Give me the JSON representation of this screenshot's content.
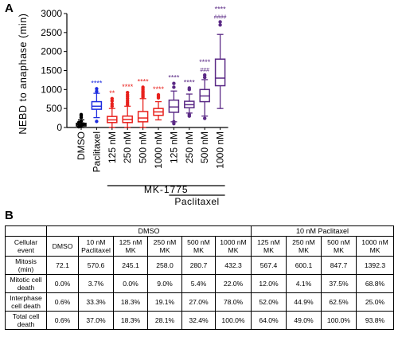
{
  "panels": {
    "a": "A",
    "b": "B"
  },
  "chart_data": {
    "type": "boxplot",
    "ylabel": "NEBD to anaphase (min)",
    "ylim": [
      0,
      3000
    ],
    "yticks": [
      "0",
      "500",
      "1000",
      "1500",
      "2000",
      "2500",
      "3000"
    ],
    "categories": [
      "DMSO",
      "Paclitaxel",
      "125 nM",
      "250 nM",
      "500 nM",
      "1000 nM",
      "125 nM",
      "250 nM",
      "500 nM",
      "1000 nM"
    ],
    "colors": [
      "#000000",
      "#1f2ee0",
      "#e8211d",
      "#e8211d",
      "#e8211d",
      "#e8211d",
      "#5b2a86",
      "#5b2a86",
      "#5b2a86",
      "#5b2a86"
    ],
    "series": [
      {
        "min": 0,
        "q1": 40,
        "median": 75,
        "q3": 110,
        "max": 200,
        "outliers": [
          260,
          310,
          340
        ]
      },
      {
        "min": 260,
        "q1": 480,
        "median": 560,
        "q3": 680,
        "max": 900,
        "outliers": [
          160,
          950,
          1020
        ]
      },
      {
        "min": 0,
        "q1": 130,
        "median": 200,
        "q3": 290,
        "max": 500,
        "outliers": [
          560,
          620,
          700,
          760
        ]
      },
      {
        "min": 0,
        "q1": 130,
        "median": 210,
        "q3": 300,
        "max": 560,
        "outliers": [
          600,
          650,
          700,
          760,
          810,
          860,
          920
        ]
      },
      {
        "min": 0,
        "q1": 150,
        "median": 250,
        "q3": 420,
        "max": 760,
        "outliers": [
          800,
          840,
          880,
          920,
          960,
          1010,
          1060
        ]
      },
      {
        "min": 200,
        "q1": 320,
        "median": 410,
        "q3": 500,
        "max": 680,
        "outliers": [
          780,
          820,
          860
        ]
      },
      {
        "min": 150,
        "q1": 400,
        "median": 540,
        "q3": 720,
        "max": 960,
        "outliers": [
          100,
          150,
          1060,
          1160
        ]
      },
      {
        "min": 380,
        "q1": 520,
        "median": 600,
        "q3": 690,
        "max": 880,
        "outliers": [
          300,
          340,
          1000,
          1040
        ]
      },
      {
        "min": 300,
        "q1": 680,
        "median": 830,
        "q3": 1000,
        "max": 1260,
        "outliers": [
          240,
          1320,
          1380
        ]
      },
      {
        "min": 500,
        "q1": 1100,
        "median": 1300,
        "q3": 1800,
        "max": 2450,
        "outliers": [
          2700,
          2780
        ]
      }
    ],
    "annotations": [
      "",
      "****",
      "**",
      "****",
      "****",
      "****",
      "****",
      "****",
      "****\n###",
      "****\n####"
    ],
    "group_labels": {
      "mk": "MK-1775",
      "paclitaxel": "Paclitaxel"
    }
  },
  "table": {
    "group_headers": {
      "dmso": "DMSO",
      "paclitaxel": "10 nM Paclitaxel"
    },
    "corner": [
      "Cellular",
      "event"
    ],
    "columns": [
      [
        "DMSO"
      ],
      [
        "10 nM",
        "Paclitaxel"
      ],
      [
        "125 nM",
        "MK"
      ],
      [
        "250 nM",
        "MK"
      ],
      [
        "500 nM",
        "MK"
      ],
      [
        "1000 nM",
        "MK"
      ],
      [
        "125 nM",
        "MK"
      ],
      [
        "250 nM",
        "MK"
      ],
      [
        "500 nM",
        "MK"
      ],
      [
        "1000 nM",
        "MK"
      ]
    ],
    "rows": [
      {
        "label": [
          "Mitosis",
          "(min)"
        ],
        "values": [
          "72.1",
          "570.6",
          "245.1",
          "258.0",
          "280.7",
          "432.3",
          "567.4",
          "600.1",
          "847.7",
          "1392.3"
        ]
      },
      {
        "label": [
          "Mitotic cell",
          "death"
        ],
        "values": [
          "0.0%",
          "3.7%",
          "0.0%",
          "9.0%",
          "5.4%",
          "22.0%",
          "12.0%",
          "4.1%",
          "37.5%",
          "68.8%"
        ]
      },
      {
        "label": [
          "Interphase",
          "cell death"
        ],
        "values": [
          "0.6%",
          "33.3%",
          "18.3%",
          "19.1%",
          "27.0%",
          "78.0%",
          "52.0%",
          "44.9%",
          "62.5%",
          "25.0%"
        ]
      },
      {
        "label": [
          "Total cell",
          "death"
        ],
        "values": [
          "0.6%",
          "37.0%",
          "18.3%",
          "28.1%",
          "32.4%",
          "100.0%",
          "64.0%",
          "49.0%",
          "100.0%",
          "93.8%"
        ]
      }
    ]
  }
}
